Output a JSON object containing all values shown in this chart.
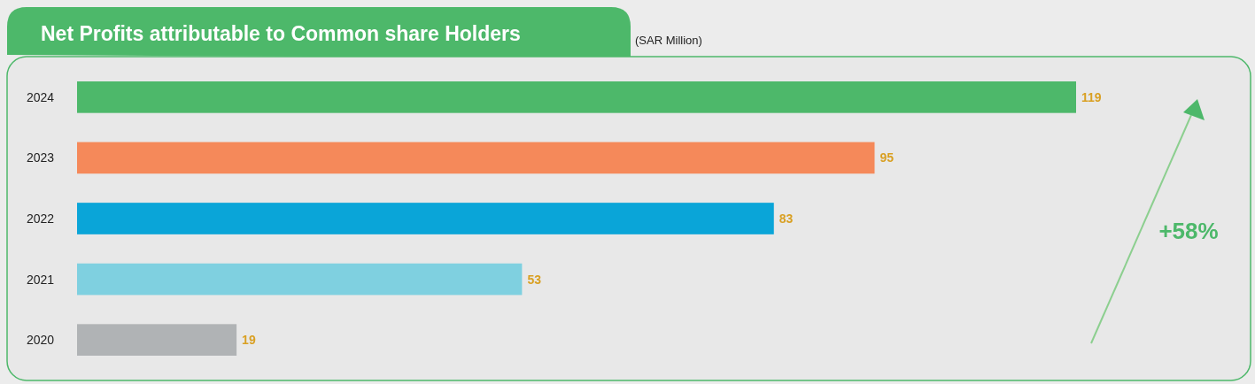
{
  "chart_data": {
    "type": "bar",
    "orientation": "horizontal",
    "title": "Net Profits attributable to Common share Holders",
    "subtitle": "(SAR Million)",
    "categories": [
      "2024",
      "2023",
      "2022",
      "2021",
      "2020"
    ],
    "values": [
      119,
      95,
      83,
      53,
      19
    ],
    "colors": [
      "#4db86a",
      "#f5895a",
      "#0aa5d8",
      "#7fd0e0",
      "#b0b3b5"
    ],
    "data_labels": true,
    "annotations": [
      "+58%"
    ]
  }
}
